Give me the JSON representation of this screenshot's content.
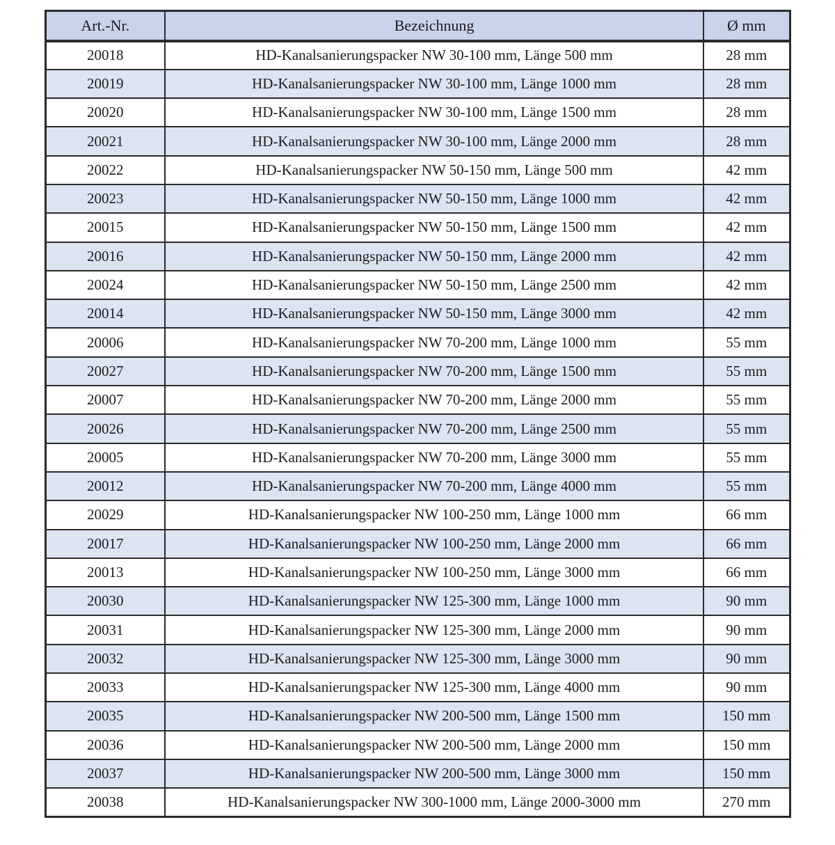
{
  "colors": {
    "page_bg": "#ffffff",
    "header_bg": "#c8d4ea",
    "zebra_bg": "#dce4f2",
    "border": "#2a2a2a",
    "text": "#1c1c1c"
  },
  "table": {
    "headers": {
      "art_nr": "Art.-Nr.",
      "bezeichnung": "Bezeichnung",
      "durchmesser": "Ø mm"
    },
    "rows": [
      {
        "art_nr": "20018",
        "bezeichnung": "HD-Kanalsanierungspacker NW 30-100 mm, Länge 500 mm",
        "durchmesser": "28 mm"
      },
      {
        "art_nr": "20019",
        "bezeichnung": "HD-Kanalsanierungspacker NW 30-100 mm, Länge 1000 mm",
        "durchmesser": "28 mm"
      },
      {
        "art_nr": "20020",
        "bezeichnung": "HD-Kanalsanierungspacker NW 30-100 mm, Länge 1500 mm",
        "durchmesser": "28 mm"
      },
      {
        "art_nr": "20021",
        "bezeichnung": "HD-Kanalsanierungspacker NW 30-100 mm, Länge 2000 mm",
        "durchmesser": "28 mm"
      },
      {
        "art_nr": "20022",
        "bezeichnung": "HD-Kanalsanierungspacker NW 50-150 mm, Länge 500 mm",
        "durchmesser": "42 mm"
      },
      {
        "art_nr": "20023",
        "bezeichnung": "HD-Kanalsanierungspacker NW 50-150 mm, Länge 1000 mm",
        "durchmesser": "42 mm"
      },
      {
        "art_nr": "20015",
        "bezeichnung": "HD-Kanalsanierungspacker NW 50-150 mm, Länge 1500 mm",
        "durchmesser": "42 mm"
      },
      {
        "art_nr": "20016",
        "bezeichnung": "HD-Kanalsanierungspacker NW 50-150 mm, Länge 2000 mm",
        "durchmesser": "42 mm"
      },
      {
        "art_nr": "20024",
        "bezeichnung": "HD-Kanalsanierungspacker NW 50-150 mm, Länge 2500 mm",
        "durchmesser": "42 mm"
      },
      {
        "art_nr": "20014",
        "bezeichnung": "HD-Kanalsanierungspacker NW 50-150 mm, Länge 3000 mm",
        "durchmesser": "42 mm"
      },
      {
        "art_nr": "20006",
        "bezeichnung": "HD-Kanalsanierungspacker NW 70-200 mm, Länge 1000 mm",
        "durchmesser": "55 mm"
      },
      {
        "art_nr": "20027",
        "bezeichnung": "HD-Kanalsanierungspacker NW 70-200 mm, Länge 1500 mm",
        "durchmesser": "55 mm"
      },
      {
        "art_nr": "20007",
        "bezeichnung": "HD-Kanalsanierungspacker NW 70-200 mm, Länge 2000 mm",
        "durchmesser": "55 mm"
      },
      {
        "art_nr": "20026",
        "bezeichnung": "HD-Kanalsanierungspacker NW 70-200 mm, Länge 2500 mm",
        "durchmesser": "55 mm"
      },
      {
        "art_nr": "20005",
        "bezeichnung": "HD-Kanalsanierungspacker NW 70-200 mm, Länge 3000 mm",
        "durchmesser": "55 mm"
      },
      {
        "art_nr": "20012",
        "bezeichnung": "HD-Kanalsanierungspacker NW 70-200 mm, Länge 4000 mm",
        "durchmesser": "55 mm"
      },
      {
        "art_nr": "20029",
        "bezeichnung": "HD-Kanalsanierungspacker NW 100-250 mm, Länge 1000 mm",
        "durchmesser": "66 mm"
      },
      {
        "art_nr": "20017",
        "bezeichnung": "HD-Kanalsanierungspacker NW 100-250 mm, Länge 2000 mm",
        "durchmesser": "66 mm"
      },
      {
        "art_nr": "20013",
        "bezeichnung": "HD-Kanalsanierungspacker NW 100-250 mm, Länge 3000 mm",
        "durchmesser": "66 mm"
      },
      {
        "art_nr": "20030",
        "bezeichnung": "HD-Kanalsanierungspacker NW 125-300 mm, Länge 1000 mm",
        "durchmesser": "90 mm"
      },
      {
        "art_nr": "20031",
        "bezeichnung": "HD-Kanalsanierungspacker NW 125-300 mm, Länge 2000 mm",
        "durchmesser": "90 mm"
      },
      {
        "art_nr": "20032",
        "bezeichnung": "HD-Kanalsanierungspacker NW 125-300 mm, Länge 3000 mm",
        "durchmesser": "90 mm"
      },
      {
        "art_nr": "20033",
        "bezeichnung": "HD-Kanalsanierungspacker NW 125-300 mm, Länge 4000 mm",
        "durchmesser": "90 mm"
      },
      {
        "art_nr": "20035",
        "bezeichnung": "HD-Kanalsanierungspacker NW 200-500 mm, Länge 1500 mm",
        "durchmesser": "150 mm"
      },
      {
        "art_nr": "20036",
        "bezeichnung": "HD-Kanalsanierungspacker NW 200-500 mm, Länge 2000 mm",
        "durchmesser": "150 mm"
      },
      {
        "art_nr": "20037",
        "bezeichnung": "HD-Kanalsanierungspacker NW 200-500 mm, Länge 3000 mm",
        "durchmesser": "150 mm"
      },
      {
        "art_nr": "20038",
        "bezeichnung": "HD-Kanalsanierungspacker NW 300-1000 mm, Länge 2000-3000 mm",
        "durchmesser": "270 mm"
      }
    ]
  }
}
